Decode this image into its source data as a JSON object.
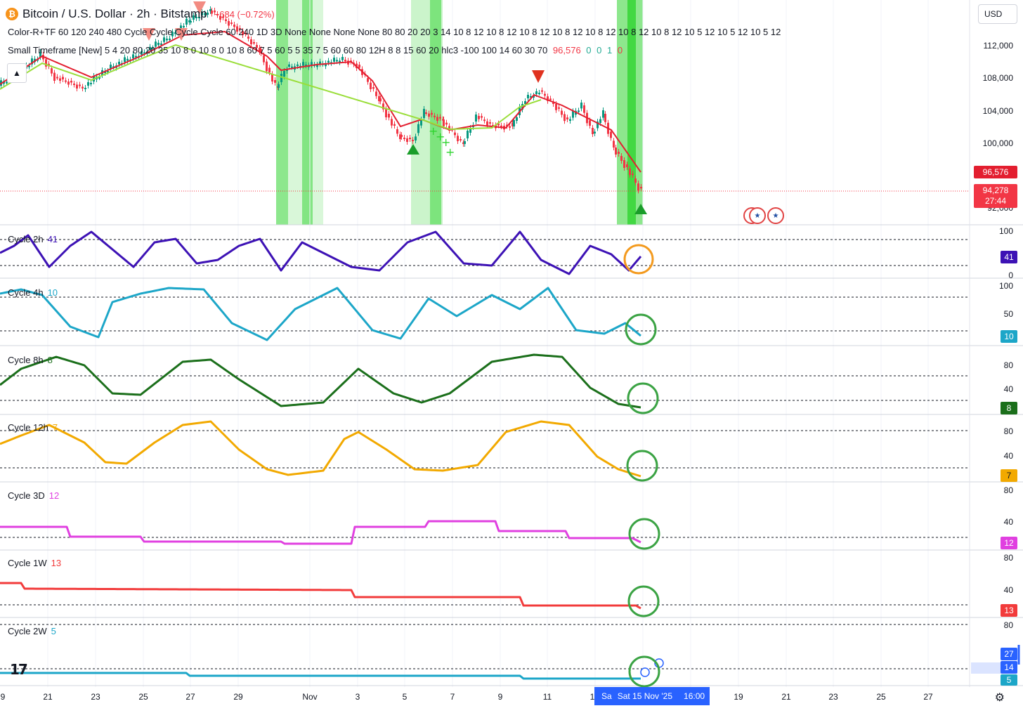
{
  "header": {
    "coin_glyph": "₿",
    "title": "Bitcoin / U.S. Dollar · 2h · Bitstamp",
    "change": "−684 (−0.72%)",
    "currency": "USD",
    "indicator_1": "Color-R+TF 60 120 240 480 Cycle Cycle Cycle Cycle 60 240 1D 3D None None None None 80 80 20 20 3 14 10 8 12 10 8 12 10 8 12 10 8 12 10 8 12 10 8 12 10 8 12 10 5 12 10 5 12 10 5 12",
    "indicator_2_text": "Small Timeframe [New] 5 4 20 80 20 35 10 8 0 10 8 0 10 8 60 7 5 60 5 5 35 7 5 60 60 80 12H 8 8 15 60 20 hlc3 -100 100 14 60 30 70",
    "indicator_2_value": "96,576",
    "indicator_2_flags": [
      "0",
      "0",
      "1",
      "0"
    ]
  },
  "price_axis": [
    "112,000",
    "108,000",
    "104,000",
    "100,000",
    "96,000",
    "92,000"
  ],
  "price_labels": {
    "ema": "96,576",
    "last": "94,278",
    "countdown": "27:44"
  },
  "events": {
    "flag_glyph": "★"
  },
  "panes": [
    {
      "title": "Cycle 2h",
      "value": "41",
      "color": "#3d12b5",
      "axis": [
        "100",
        "0"
      ]
    },
    {
      "title": "Cycle 4h",
      "value": "10",
      "color": "#1ca6c8",
      "axis": [
        "100",
        "50"
      ]
    },
    {
      "title": "Cycle 8h",
      "value": "8",
      "color": "#1b6f1b",
      "axis": [
        "80",
        "40"
      ]
    },
    {
      "title": "Cycle 12h",
      "value": "7",
      "color": "#f2a900",
      "axis": [
        "80",
        "40"
      ]
    },
    {
      "title": "Cycle 3D",
      "value": "12",
      "color": "#e040e0",
      "axis": [
        "80",
        "40"
      ]
    },
    {
      "title": "Cycle 1W",
      "value": "13",
      "color": "#f23b3b",
      "axis": [
        "80",
        "40"
      ]
    },
    {
      "title": "Cycle 2W",
      "value": "5",
      "color": "#1ca6c8",
      "axis": [
        "80"
      ]
    }
  ],
  "extra_labels": {
    "blue_top": "27",
    "blue_mid": "14"
  },
  "time_axis": [
    "9",
    "21",
    "23",
    "25",
    "27",
    "29",
    "Nov",
    "3",
    "5",
    "7",
    "9",
    "11",
    "1",
    "19",
    "21",
    "23",
    "25",
    "27"
  ],
  "date_cursor": {
    "prefix": "Sa",
    "date": "Sat 15 Nov '25",
    "time": "16:00"
  },
  "colors": {
    "ema": "#e31e2f",
    "green_line": "#9ade3a",
    "band": "#2fd42f",
    "up": "#089981",
    "down": "#f23645",
    "circle_green": "#3ba344",
    "circle_orange": "#f39a1e"
  },
  "icons": [
    "bitcoin-icon",
    "chevron-up-icon",
    "us-flag-icon",
    "settings-gear-icon",
    "tradingview-logo-icon"
  ]
}
